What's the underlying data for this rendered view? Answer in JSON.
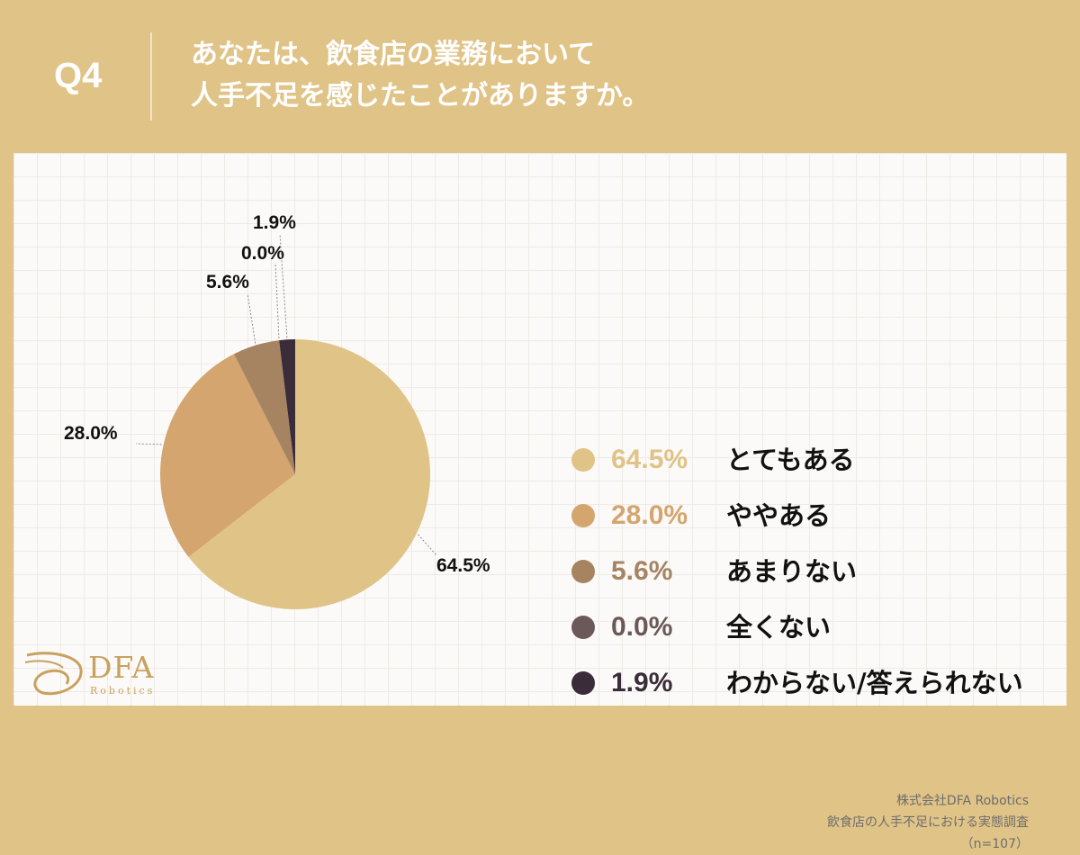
{
  "header": {
    "question_label": "Q4",
    "question_line1": "あなたは、飲食店の業務において",
    "question_line2": "人手不足を感じたことがありますか。"
  },
  "chart_data": {
    "type": "pie",
    "categories": [
      "とてもある",
      "ややある",
      "あまりない",
      "全くない",
      "わからない/答えられない"
    ],
    "values": [
      64.5,
      28.0,
      5.6,
      0.0,
      1.9
    ],
    "value_labels": [
      "64.5%",
      "28.0%",
      "5.6%",
      "0.0%",
      "1.9%"
    ],
    "colors": [
      "#E0C387",
      "#D4A56E",
      "#A68462",
      "#6B5858",
      "#3A2C38"
    ],
    "legend_placement": "right",
    "start_angle_deg": 0,
    "direction": "clockwise"
  },
  "source": {
    "company": "株式会社DFA Robotics",
    "survey": "飲食店の人手不足における実態調査",
    "sample": "（n=107）"
  },
  "logo": {
    "text": "DFA",
    "sub": "Robotics"
  }
}
